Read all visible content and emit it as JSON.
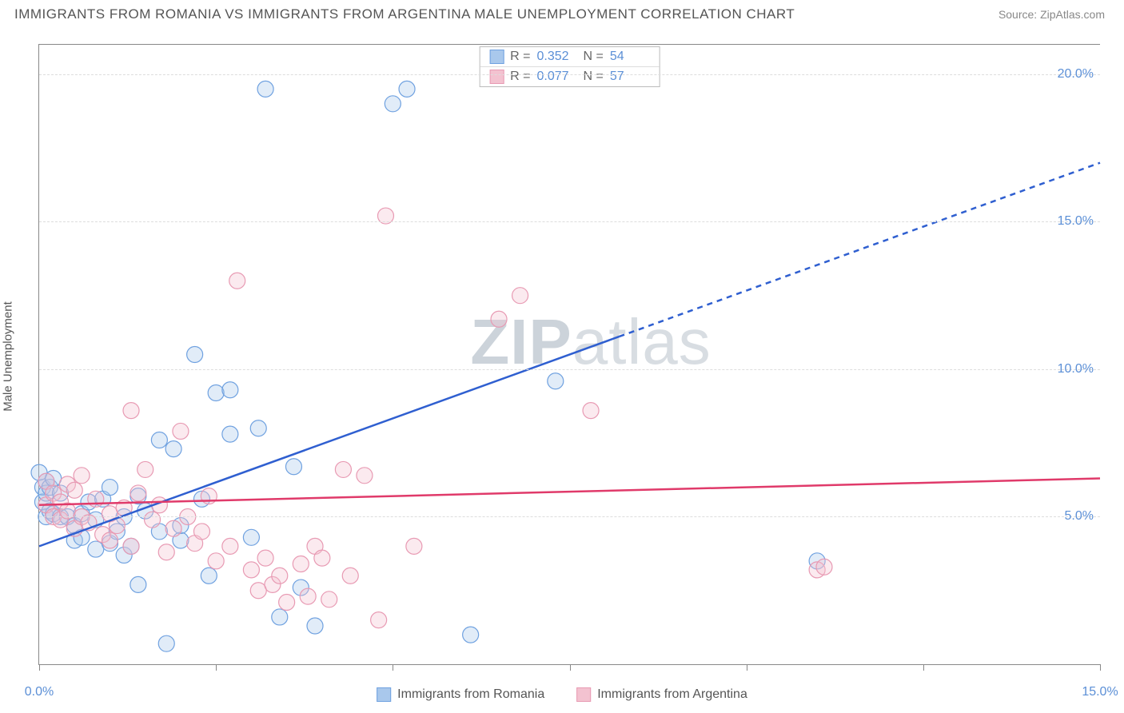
{
  "title": "IMMIGRANTS FROM ROMANIA VS IMMIGRANTS FROM ARGENTINA MALE UNEMPLOYMENT CORRELATION CHART",
  "source": "Source: ZipAtlas.com",
  "ylabel": "Male Unemployment",
  "watermark_bold": "ZIP",
  "watermark_light": "atlas",
  "chart": {
    "type": "scatter",
    "background_color": "#ffffff",
    "grid_color": "#dddddd",
    "axis_color": "#888888",
    "xlim": [
      0,
      15
    ],
    "ylim": [
      0,
      21
    ],
    "xtick_label_min": "0.0%",
    "xtick_label_max": "15.0%",
    "xtick_positions": [
      0,
      2.5,
      5.0,
      7.5,
      10.0,
      12.5,
      15.0
    ],
    "ytick_labels": [
      {
        "v": 5,
        "label": "5.0%"
      },
      {
        "v": 10,
        "label": "10.0%"
      },
      {
        "v": 15,
        "label": "15.0%"
      },
      {
        "v": 20,
        "label": "20.0%"
      }
    ],
    "marker_radius": 10,
    "marker_fill_opacity": 0.35,
    "marker_stroke_width": 1.2,
    "trend_line_width": 2.5,
    "trend_dash": "7 6",
    "series": [
      {
        "id": "romania",
        "label": "Immigrants from Romania",
        "color_stroke": "#6fa1e0",
        "color_fill": "#a9c8ec",
        "line_color": "#2f5fd0",
        "r_value": "0.352",
        "n_value": "54",
        "trend": {
          "y0": 4.0,
          "y15": 17.0,
          "x_solid_end": 8.2
        },
        "points": [
          [
            0.0,
            6.5
          ],
          [
            0.05,
            6.0
          ],
          [
            0.05,
            5.5
          ],
          [
            0.1,
            6.2
          ],
          [
            0.1,
            5.0
          ],
          [
            0.1,
            5.8
          ],
          [
            0.15,
            6.0
          ],
          [
            0.15,
            5.2
          ],
          [
            0.2,
            6.3
          ],
          [
            0.2,
            5.1
          ],
          [
            0.3,
            5.8
          ],
          [
            0.3,
            5.0
          ],
          [
            0.4,
            5.0
          ],
          [
            0.5,
            4.7
          ],
          [
            0.5,
            4.2
          ],
          [
            0.6,
            5.1
          ],
          [
            0.6,
            4.3
          ],
          [
            0.7,
            5.5
          ],
          [
            0.8,
            3.9
          ],
          [
            0.8,
            4.9
          ],
          [
            0.9,
            5.6
          ],
          [
            1.0,
            4.1
          ],
          [
            1.0,
            6.0
          ],
          [
            1.1,
            4.5
          ],
          [
            1.2,
            3.7
          ],
          [
            1.2,
            5.0
          ],
          [
            1.3,
            4.0
          ],
          [
            1.4,
            2.7
          ],
          [
            1.4,
            5.7
          ],
          [
            1.5,
            5.2
          ],
          [
            1.7,
            7.6
          ],
          [
            1.7,
            4.5
          ],
          [
            1.8,
            0.7
          ],
          [
            1.9,
            7.3
          ],
          [
            2.0,
            4.2
          ],
          [
            2.0,
            4.7
          ],
          [
            2.2,
            10.5
          ],
          [
            2.3,
            5.6
          ],
          [
            2.4,
            3.0
          ],
          [
            2.5,
            9.2
          ],
          [
            2.7,
            9.3
          ],
          [
            2.7,
            7.8
          ],
          [
            3.0,
            4.3
          ],
          [
            3.1,
            8.0
          ],
          [
            3.2,
            19.5
          ],
          [
            3.4,
            1.6
          ],
          [
            3.6,
            6.7
          ],
          [
            3.7,
            2.6
          ],
          [
            3.9,
            1.3
          ],
          [
            5.0,
            19.0
          ],
          [
            5.2,
            19.5
          ],
          [
            6.1,
            1.0
          ],
          [
            7.3,
            9.6
          ],
          [
            11,
            3.5
          ]
        ]
      },
      {
        "id": "argentina",
        "label": "Immigrants from Argentina",
        "color_stroke": "#e89ab3",
        "color_fill": "#f3c2d0",
        "line_color": "#e03a6a",
        "r_value": "0.077",
        "n_value": "57",
        "trend": {
          "y0": 5.4,
          "y15": 6.3,
          "x_solid_end": 15
        },
        "points": [
          [
            0.1,
            6.2
          ],
          [
            0.1,
            5.4
          ],
          [
            0.2,
            5.8
          ],
          [
            0.2,
            5.0
          ],
          [
            0.3,
            4.9
          ],
          [
            0.3,
            5.5
          ],
          [
            0.4,
            6.1
          ],
          [
            0.4,
            5.2
          ],
          [
            0.5,
            5.9
          ],
          [
            0.5,
            4.6
          ],
          [
            0.6,
            5.0
          ],
          [
            0.6,
            6.4
          ],
          [
            0.7,
            4.8
          ],
          [
            0.8,
            5.6
          ],
          [
            0.9,
            4.4
          ],
          [
            1.0,
            5.1
          ],
          [
            1.0,
            4.2
          ],
          [
            1.1,
            4.7
          ],
          [
            1.2,
            5.3
          ],
          [
            1.3,
            8.6
          ],
          [
            1.3,
            4.0
          ],
          [
            1.4,
            5.8
          ],
          [
            1.5,
            6.6
          ],
          [
            1.6,
            4.9
          ],
          [
            1.7,
            5.4
          ],
          [
            1.8,
            3.8
          ],
          [
            1.9,
            4.6
          ],
          [
            2.0,
            7.9
          ],
          [
            2.1,
            5.0
          ],
          [
            2.2,
            4.1
          ],
          [
            2.3,
            4.5
          ],
          [
            2.4,
            5.7
          ],
          [
            2.5,
            3.5
          ],
          [
            2.7,
            4.0
          ],
          [
            2.8,
            13.0
          ],
          [
            3.0,
            3.2
          ],
          [
            3.1,
            2.5
          ],
          [
            3.2,
            3.6
          ],
          [
            3.3,
            2.7
          ],
          [
            3.4,
            3.0
          ],
          [
            3.5,
            2.1
          ],
          [
            3.7,
            3.4
          ],
          [
            3.8,
            2.3
          ],
          [
            3.9,
            4.0
          ],
          [
            4.0,
            3.6
          ],
          [
            4.1,
            2.2
          ],
          [
            4.3,
            6.6
          ],
          [
            4.4,
            3.0
          ],
          [
            4.6,
            6.4
          ],
          [
            4.8,
            1.5
          ],
          [
            4.9,
            15.2
          ],
          [
            5.3,
            4.0
          ],
          [
            6.5,
            11.7
          ],
          [
            6.8,
            12.5
          ],
          [
            7.8,
            8.6
          ],
          [
            11.0,
            3.2
          ],
          [
            11.1,
            3.3
          ]
        ]
      }
    ]
  },
  "legend_labels": {
    "R": "R =",
    "N": "N ="
  }
}
